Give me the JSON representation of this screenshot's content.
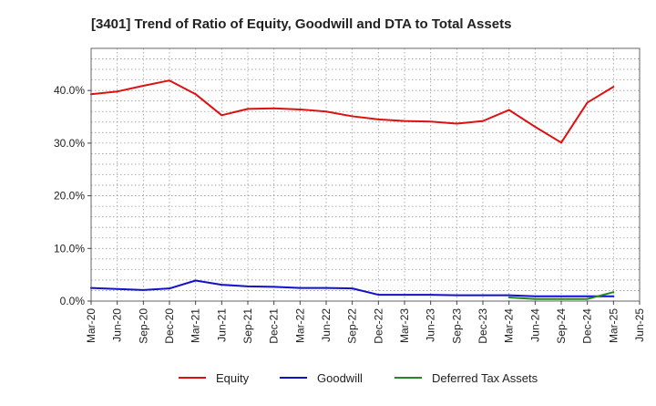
{
  "chart_data": {
    "type": "line",
    "title": "[3401]  Trend of Ratio of Equity, Goodwill and DTA to Total Assets",
    "xlabel": "",
    "ylabel": "",
    "ylim": [
      0,
      48
    ],
    "yticks": [
      0,
      10,
      20,
      30,
      40
    ],
    "ytick_labels": [
      "0.0%",
      "10.0%",
      "20.0%",
      "30.0%",
      "40.0%"
    ],
    "grid": true,
    "legend_position": "bottom-center",
    "categories": [
      "Mar-20",
      "Jun-20",
      "Sep-20",
      "Dec-20",
      "Mar-21",
      "Jun-21",
      "Sep-21",
      "Dec-21",
      "Mar-22",
      "Jun-22",
      "Sep-22",
      "Dec-22",
      "Mar-23",
      "Jun-23",
      "Sep-23",
      "Dec-23",
      "Mar-24",
      "Jun-24",
      "Sep-24",
      "Dec-24",
      "Mar-25",
      "Jun-25"
    ],
    "series": [
      {
        "name": "Equity",
        "color": "#dd1111",
        "values": [
          39.3,
          39.8,
          40.9,
          41.9,
          39.3,
          35.3,
          36.5,
          36.6,
          36.4,
          36.0,
          35.1,
          34.5,
          34.2,
          34.1,
          33.7,
          34.2,
          36.3,
          33.1,
          30.1,
          37.7,
          40.7,
          null
        ]
      },
      {
        "name": "Goodwill",
        "color": "#1111cc",
        "values": [
          2.5,
          2.3,
          2.1,
          2.4,
          3.9,
          3.1,
          2.8,
          2.7,
          2.5,
          2.5,
          2.4,
          1.2,
          1.2,
          1.2,
          1.1,
          1.1,
          1.1,
          0.9,
          0.9,
          0.9,
          0.9,
          null
        ]
      },
      {
        "name": "Deferred Tax Assets",
        "color": "#228822",
        "values": [
          null,
          null,
          null,
          null,
          null,
          null,
          null,
          null,
          null,
          null,
          null,
          null,
          null,
          null,
          null,
          null,
          0.7,
          0.4,
          0.4,
          0.4,
          1.7,
          null
        ]
      }
    ]
  }
}
